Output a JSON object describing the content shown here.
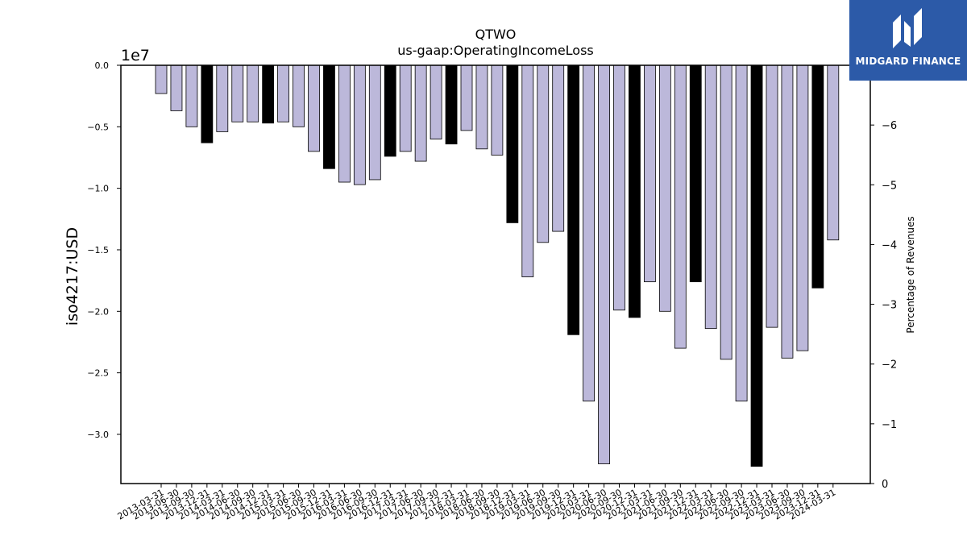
{
  "brand": {
    "name": "MIDGARD FINANCE",
    "color": "#2c5aa8"
  },
  "chart_data": {
    "type": "bar",
    "title": "QTWO",
    "subtitle": "us-gaap:OperatingIncomeLoss",
    "ylabel": "iso4217:USD",
    "ylabel_right": "Percentage of Revenues",
    "offset_label": "1e7",
    "ylim": [
      -34000000.0,
      0
    ],
    "yticks": [
      0,
      -5000000,
      -10000000,
      -15000000,
      -20000000,
      -25000000,
      -30000000
    ],
    "ytick_labels": [
      "0.0",
      "−0.5",
      "−1.0",
      "−1.5",
      "−2.0",
      "−2.5",
      "−3.0"
    ],
    "y2lim": [
      0,
      -7
    ],
    "y2ticks": [
      0,
      -1,
      -2,
      -3,
      -4,
      -5,
      -6
    ],
    "y2tick_labels": [
      "0",
      "−1",
      "−2",
      "−3",
      "−4",
      "−5",
      "−6"
    ],
    "grid": false,
    "colors": {
      "quarterly": "#bcb8da",
      "annual": "#000000",
      "edge": "#000000"
    },
    "categories": [
      "2013-03-31",
      "2013-06-30",
      "2013-09-30",
      "2013-12-31",
      "2014-03-31",
      "2014-06-30",
      "2014-09-30",
      "2014-12-31",
      "2015-03-31",
      "2015-06-30",
      "2015-09-30",
      "2015-12-31",
      "2016-03-31",
      "2016-06-30",
      "2016-09-30",
      "2016-12-31",
      "2017-03-31",
      "2017-06-30",
      "2017-09-30",
      "2017-12-31",
      "2018-03-31",
      "2018-06-30",
      "2018-09-30",
      "2018-12-31",
      "2019-03-31",
      "2019-06-30",
      "2019-09-30",
      "2019-12-31",
      "2020-03-31",
      "2020-06-30",
      "2020-09-30",
      "2020-12-31",
      "2021-03-31",
      "2021-06-30",
      "2021-09-30",
      "2021-12-31",
      "2022-03-31",
      "2022-06-30",
      "2022-09-30",
      "2022-12-31",
      "2023-03-31",
      "2023-06-30",
      "2023-09-30",
      "2023-12-31",
      "2024-03-31"
    ],
    "series": [
      {
        "values": [
          -2300000,
          -3700000,
          -5000000,
          -6300000,
          -5400000,
          -4600000,
          -4600000,
          -4700000,
          -4600000,
          -5000000,
          -7000000,
          -8400000,
          -9500000,
          -9700000,
          -9300000,
          -7400000,
          -7000000,
          -7800000,
          -6000000,
          -6400000,
          -5300000,
          -6800000,
          -7300000,
          -12800000,
          -17200000,
          -14400000,
          -13500000,
          -21900000,
          -27300000,
          -32400000,
          -19900000,
          -20500000,
          -17600000,
          -20000000,
          -23000000,
          -17600000,
          -21400000,
          -23900000,
          -27300000,
          -32600000,
          -21300000,
          -23800000,
          -23200000,
          -18100000,
          -14200000
        ],
        "annual": [
          false,
          false,
          false,
          true,
          false,
          false,
          false,
          true,
          false,
          false,
          false,
          true,
          false,
          false,
          false,
          true,
          false,
          false,
          false,
          true,
          false,
          false,
          false,
          true,
          false,
          false,
          false,
          true,
          false,
          false,
          false,
          true,
          false,
          false,
          false,
          true,
          false,
          false,
          false,
          true,
          false,
          false,
          false,
          true,
          false
        ]
      }
    ]
  }
}
